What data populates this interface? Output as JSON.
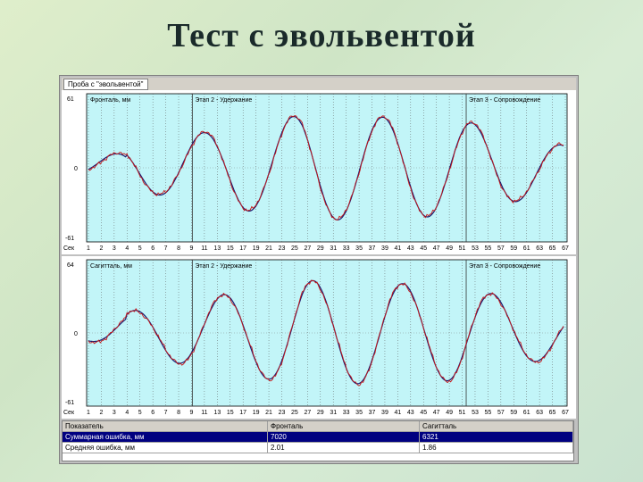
{
  "slide": {
    "title": "Тест с эвольвентой"
  },
  "window": {
    "tab_label": "Проба с \"эвольвентой\""
  },
  "charts": {
    "top": {
      "ymax_label": "61",
      "yzero_label": "0",
      "ymin_label": "-61",
      "xunit_label": "Сек",
      "series_label": "Фронталь, мм",
      "stage2_label": "Этап 2 - Удержание",
      "stage3_label": "Этап 3 - Сопровождение"
    },
    "bottom": {
      "ymax_label": "64",
      "yzero_label": "0",
      "ymin_label": "-61",
      "xunit_label": "Сек",
      "series_label": "Сагитталь, мм",
      "stage2_label": "Этап 2 - Удержание",
      "stage3_label": "Этап 3 - Сопровождение"
    },
    "x_ticks": [
      "1",
      "2",
      "3",
      "4",
      "5",
      "6",
      "7",
      "8",
      "9",
      "11",
      "13",
      "15",
      "17",
      "19",
      "21",
      "23",
      "25",
      "27",
      "29",
      "31",
      "33",
      "35",
      "37",
      "39",
      "41",
      "43",
      "45",
      "47",
      "49",
      "51",
      "53",
      "55",
      "57",
      "59",
      "61",
      "63",
      "65",
      "67"
    ],
    "colors": {
      "background": "#c2f5f8",
      "target": "#1a1a6e",
      "response": "#c81818",
      "grid": "#5a5a5a"
    }
  },
  "table": {
    "headers": [
      "Показатель",
      "Фронталь",
      "Сагитталь"
    ],
    "rows": [
      {
        "name": "Суммарная ошибка, мм",
        "front": "7020",
        "sag": "6321",
        "selected": true
      },
      {
        "name": "Средняя ошибка, мм",
        "front": "2.01",
        "sag": "1.86",
        "selected": false
      }
    ]
  }
}
